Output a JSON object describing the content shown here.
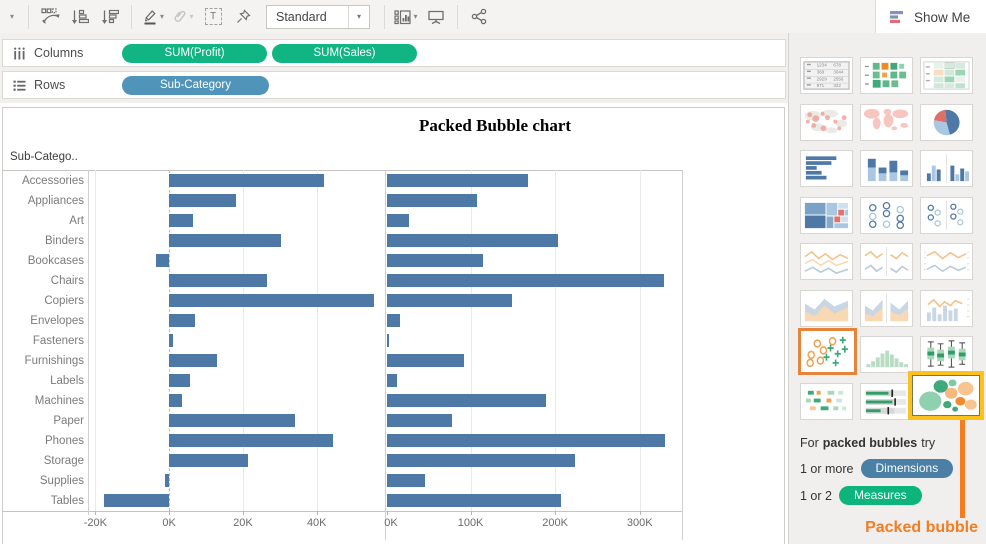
{
  "toolbar": {
    "fit_value": "Standard",
    "show_me_label": "Show Me"
  },
  "shelves": {
    "columns_label": "Columns",
    "rows_label": "Rows",
    "columns_pills": [
      "SUM(Profit)",
      "SUM(Sales)"
    ],
    "rows_pills": [
      "Sub-Category"
    ]
  },
  "chart_data": {
    "type": "bar",
    "title": "Packed Bubble chart",
    "row_header": "Sub-Catego..",
    "row_axis_field": "Sub-Category",
    "grid": true,
    "legend_position": "none",
    "categories": [
      "Accessories",
      "Appliances",
      "Art",
      "Binders",
      "Bookcases",
      "Chairs",
      "Copiers",
      "Envelopes",
      "Fasteners",
      "Furnishings",
      "Labels",
      "Machines",
      "Paper",
      "Phones",
      "Storage",
      "Supplies",
      "Tables"
    ],
    "series": [
      {
        "name": "SUM(Profit)",
        "values": [
          41937,
          18138,
          6528,
          30222,
          -3473,
          26590,
          55618,
          6964,
          950,
          13059,
          5546,
          3385,
          34054,
          44516,
          21279,
          -1189,
          -17725
        ],
        "axis_range": [
          -22000,
          58500
        ],
        "ticks": [
          {
            "value": -20000,
            "label": "-20K"
          },
          {
            "value": 0,
            "label": "0K"
          },
          {
            "value": 20000,
            "label": "20K"
          },
          {
            "value": 40000,
            "label": "40K"
          }
        ]
      },
      {
        "name": "SUM(Sales)",
        "values": [
          167380,
          107532,
          27119,
          203413,
          114880,
          328449,
          149528,
          16476,
          3024,
          91705,
          12486,
          189239,
          78479,
          330007,
          223844,
          46674,
          206966
        ],
        "axis_range": [
          0,
          350000
        ],
        "ticks": [
          {
            "value": 0,
            "label": "0K"
          },
          {
            "value": 100000,
            "label": "100K"
          },
          {
            "value": 200000,
            "label": "200K"
          },
          {
            "value": 300000,
            "label": "300K"
          }
        ]
      }
    ],
    "bar_color": "#4e79a7"
  },
  "show_me": {
    "button_label": "Show Me",
    "thumbnails": [
      {
        "name": "text-table-icon"
      },
      {
        "name": "highlight-table-icon"
      },
      {
        "name": "heat-map-icon"
      },
      {
        "name": "symbol-map-icon"
      },
      {
        "name": "filled-map-icon"
      },
      {
        "name": "pie-chart-icon"
      },
      {
        "name": "horizontal-bars-icon"
      },
      {
        "name": "stacked-bars-icon"
      },
      {
        "name": "side-by-side-bars-icon"
      },
      {
        "name": "treemap-icon"
      },
      {
        "name": "circle-views-icon"
      },
      {
        "name": "side-by-side-circles-icon"
      },
      {
        "name": "lines-continuous-icon"
      },
      {
        "name": "lines-discrete-icon"
      },
      {
        "name": "dual-lines-icon"
      },
      {
        "name": "area-continuous-icon"
      },
      {
        "name": "area-discrete-icon"
      },
      {
        "name": "dual-combination-icon"
      },
      {
        "name": "scatter-plot-icon",
        "frame": "orange"
      },
      {
        "name": "histogram-icon"
      },
      {
        "name": "box-and-whisker-icon"
      },
      {
        "name": "gantt-icon"
      },
      {
        "name": "bullet-graph-icon"
      },
      {
        "name": "packed-bubbles-icon",
        "frame": "gold"
      }
    ],
    "footer": {
      "line1_prefix": "For",
      "line1_bold": "packed bubbles",
      "line1_suffix": "try",
      "line2_text": "1 or more",
      "line2_pill": "Dimensions",
      "line3_text": "1 or 2",
      "line3_pill": "Measures"
    },
    "annotation_label": "Packed bubble"
  },
  "colors": {
    "pill_green": "#11b584",
    "pill_blue": "#5094ba",
    "bar_blue": "#4e79a7",
    "accent_orange": "#f57d20",
    "gold_frame": "#fcc11a",
    "orange_frame": "#e8833a",
    "dimensions_pill": "#4a7fa6",
    "measures_pill": "#0db57d"
  }
}
